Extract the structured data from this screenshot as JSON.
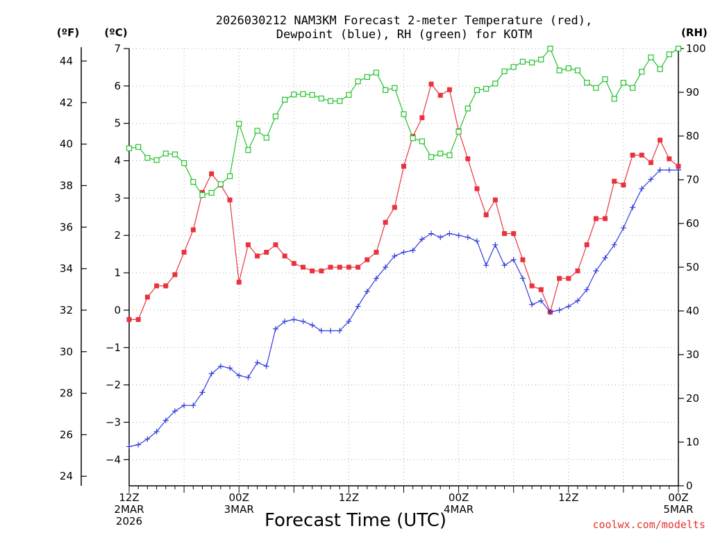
{
  "chart_data": {
    "type": "line",
    "title": [
      "2026030212 NAM3KM Forecast 2-meter Temperature (red),",
      "Dewpoint (blue), RH (green) for KOTM"
    ],
    "xlabel": "Forecast Time (UTC)",
    "units": {
      "fahrenheit": "(ºF)",
      "celsius": "(ºC)",
      "rh": "(RH)"
    },
    "credit": "coolwx.com/modelts",
    "x_range_hours": [
      0,
      60
    ],
    "x_ticks": [
      {
        "hour": 0,
        "lines": [
          "12Z",
          "2MAR",
          "2026"
        ]
      },
      {
        "hour": 12,
        "lines": [
          "00Z",
          "3MAR"
        ]
      },
      {
        "hour": 24,
        "lines": [
          "12Z"
        ]
      },
      {
        "hour": 36,
        "lines": [
          "00Z",
          "4MAR"
        ]
      },
      {
        "hour": 48,
        "lines": [
          "12Z"
        ]
      },
      {
        "hour": 60,
        "lines": [
          "00Z",
          "5MAR"
        ]
      }
    ],
    "y_left_celsius": {
      "range": [
        -4.7,
        7
      ],
      "ticks": [
        -4,
        -3,
        -2,
        -1,
        0,
        1,
        2,
        3,
        4,
        5,
        6,
        7
      ]
    },
    "y_left_fahrenheit": {
      "ticks": [
        24,
        26,
        28,
        30,
        32,
        34,
        36,
        38,
        40,
        42,
        44
      ]
    },
    "y_right_rh": {
      "range": [
        0,
        100
      ],
      "ticks": [
        0,
        10,
        20,
        30,
        40,
        50,
        60,
        70,
        80,
        90,
        100
      ]
    },
    "series": [
      {
        "name": "Temperature",
        "axis": "celsius",
        "color": "#e8323c",
        "marker": "filled-square",
        "values": [
          -0.25,
          -0.25,
          0.35,
          0.65,
          0.65,
          0.95,
          1.55,
          2.15,
          3.15,
          3.65,
          3.35,
          2.95,
          0.75,
          1.75,
          1.45,
          1.55,
          1.75,
          1.45,
          1.25,
          1.15,
          1.05,
          1.05,
          1.15,
          1.15,
          1.15,
          1.15,
          1.35,
          1.55,
          2.35,
          2.75,
          3.85,
          4.65,
          5.15,
          6.05,
          5.75,
          5.9,
          4.8,
          4.05,
          3.25,
          2.55,
          2.95,
          2.05,
          2.05,
          1.35,
          0.65,
          0.55,
          -0.05,
          0.85,
          0.85,
          1.05,
          1.75,
          2.45,
          2.45,
          3.45,
          3.35,
          4.15,
          4.15,
          3.95,
          4.55,
          4.05,
          3.85
        ]
      },
      {
        "name": "Dewpoint",
        "axis": "celsius",
        "color": "#2f3bdc",
        "marker": "plus",
        "values": [
          -3.65,
          -3.6,
          -3.45,
          -3.25,
          -2.95,
          -2.7,
          -2.55,
          -2.55,
          -2.2,
          -1.7,
          -1.5,
          -1.55,
          -1.75,
          -1.8,
          -1.4,
          -1.5,
          -0.5,
          -0.3,
          -0.25,
          -0.3,
          -0.4,
          -0.55,
          -0.55,
          -0.55,
          -0.3,
          0.1,
          0.5,
          0.85,
          1.15,
          1.45,
          1.55,
          1.6,
          1.9,
          2.05,
          1.95,
          2.05,
          2.0,
          1.95,
          1.85,
          1.2,
          1.75,
          1.2,
          1.35,
          0.85,
          0.15,
          0.25,
          -0.05,
          0.0,
          0.1,
          0.25,
          0.55,
          1.05,
          1.4,
          1.75,
          2.2,
          2.75,
          3.25,
          3.5,
          3.75,
          3.75,
          3.75
        ]
      },
      {
        "name": "RH",
        "axis": "rh",
        "color": "#22c12a",
        "marker": "open-square",
        "values": [
          77.2,
          77.5,
          75.0,
          74.5,
          76.0,
          75.8,
          73.8,
          69.5,
          66.5,
          67.0,
          69.0,
          70.8,
          82.8,
          76.8,
          81.2,
          79.6,
          84.5,
          88.3,
          89.5,
          89.6,
          89.4,
          88.6,
          88.0,
          88.0,
          89.4,
          92.5,
          93.5,
          94.5,
          90.5,
          91.0,
          85.0,
          79.5,
          78.8,
          75.2,
          76.0,
          75.6,
          81.0,
          86.3,
          90.5,
          90.8,
          92.0,
          94.8,
          95.8,
          97.0,
          96.8,
          97.5,
          100.0,
          95.0,
          95.5,
          95.0,
          92.2,
          91.0,
          93.0,
          88.5,
          92.2,
          91.0,
          94.7,
          98.0,
          95.3,
          98.7,
          100.0
        ]
      }
    ]
  }
}
